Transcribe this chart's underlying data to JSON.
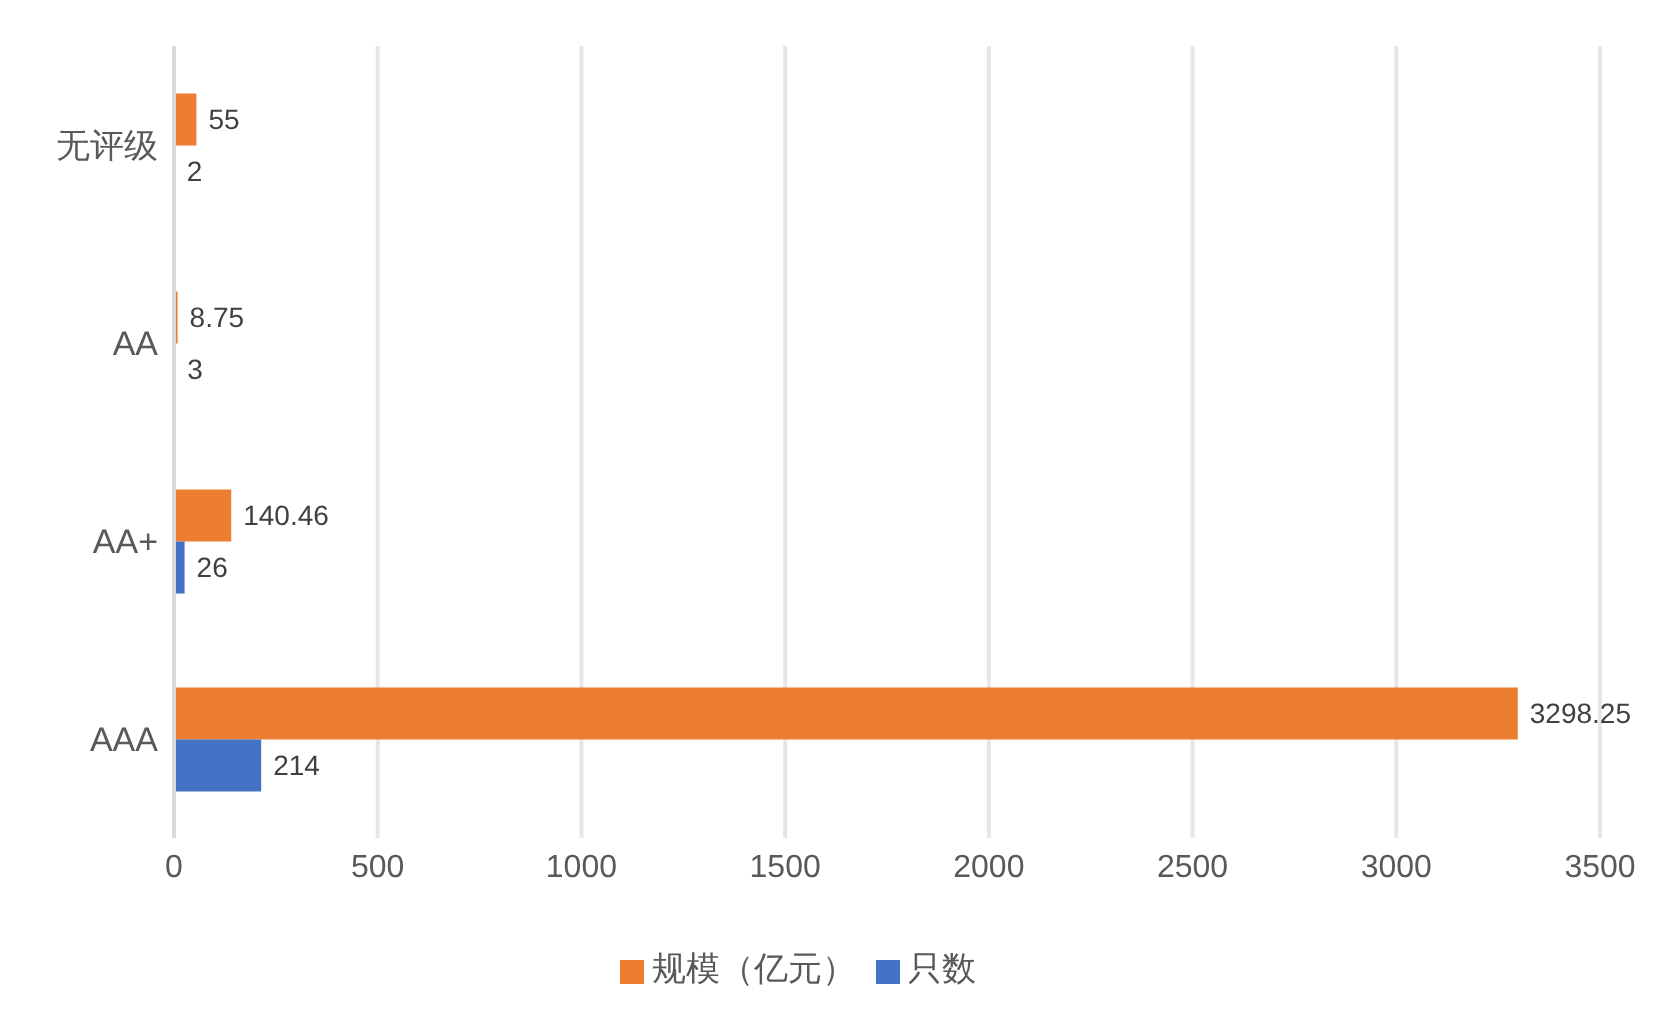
{
  "chart_data": {
    "type": "bar",
    "orientation": "horizontal",
    "categories": [
      "无评级",
      "AA",
      "AA+",
      "AAA"
    ],
    "series": [
      {
        "name": "规模（亿元）",
        "color": "#ed7d31",
        "values": [
          55,
          8.75,
          140.46,
          3298.25
        ]
      },
      {
        "name": "只数",
        "color": "#4472c4",
        "values": [
          2,
          3,
          26,
          214
        ]
      }
    ],
    "xlim": [
      0,
      3500
    ],
    "xticks": [
      0,
      500,
      1000,
      1500,
      2000,
      2500,
      3000,
      3500
    ],
    "grid": "x",
    "legend": "bottom",
    "data_labels": true
  }
}
